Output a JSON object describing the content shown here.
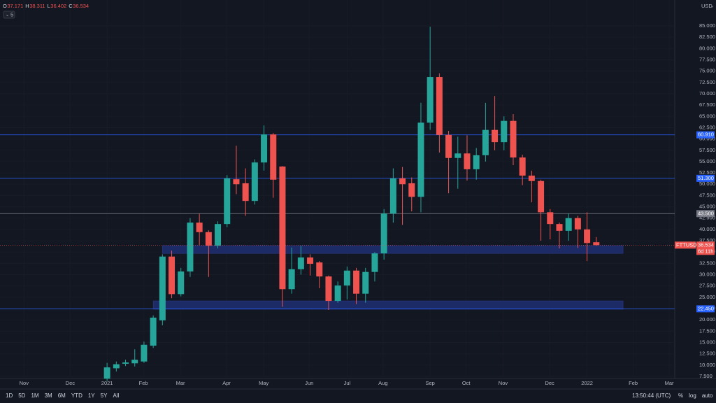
{
  "chart_data": {
    "type": "candlestick",
    "categories": [
      null,
      null,
      null,
      null,
      null,
      null,
      null,
      null,
      null,
      null,
      null,
      null,
      null,
      null,
      null,
      null,
      null,
      null,
      null,
      null,
      null,
      null,
      null,
      null,
      null,
      null,
      null,
      null,
      null,
      null,
      null,
      null,
      null,
      null,
      null,
      null,
      null,
      null,
      null,
      null,
      null,
      null,
      null,
      null,
      null,
      null,
      null,
      null,
      null,
      null,
      null,
      null,
      null,
      null
    ],
    "open": [
      7.0,
      9.3,
      10.3,
      10.4,
      10.8,
      14.3,
      19.9,
      34.0,
      25.7,
      30.7,
      41.5,
      39.4,
      36.4,
      41.2,
      51.1,
      50.2,
      46.3,
      54.8,
      61.0,
      53.9,
      26.8,
      31.2,
      33.8,
      32.7,
      29.6,
      24.2,
      27.6,
      30.9,
      25.8,
      30.6,
      34.7,
      43.5,
      51.3,
      50.2,
      47.2,
      63.6,
      73.7,
      60.9,
      55.8,
      56.8,
      53.3,
      56.4,
      62.0,
      59.3,
      64.0,
      55.9,
      51.9,
      50.7,
      43.8,
      41.2,
      39.7,
      42.5,
      40.0,
      37.171
    ],
    "high": [
      10.5,
      10.8,
      11.2,
      13.5,
      15.2,
      21.0,
      34.5,
      35.3,
      31.5,
      42.5,
      43.5,
      39.8,
      41.8,
      52.0,
      58.5,
      53.5,
      55.5,
      63.0,
      61.3,
      54.0,
      36.0,
      36.3,
      34.5,
      33.0,
      29.8,
      28.5,
      31.8,
      31.5,
      31.5,
      35.0,
      44.5,
      53.5,
      53.8,
      51.5,
      68.0,
      84.8,
      74.5,
      61.8,
      60.5,
      60.8,
      58.0,
      68.0,
      69.5,
      65.0,
      65.5,
      56.5,
      53.0,
      51.0,
      44.5,
      41.5,
      43.5,
      43.0,
      43.8,
      38.311
    ],
    "low": [
      6.5,
      8.6,
      9.8,
      9.7,
      10.5,
      13.8,
      18.8,
      24.8,
      25.2,
      29.5,
      36.5,
      29.5,
      35.8,
      40.5,
      47.8,
      43.0,
      45.5,
      53.0,
      47.0,
      22.9,
      25.8,
      30.0,
      29.8,
      27.0,
      22.2,
      23.8,
      24.5,
      23.5,
      23.8,
      28.5,
      33.3,
      41.5,
      41.0,
      44.0,
      43.8,
      62.0,
      57.0,
      48.0,
      49.0,
      50.8,
      51.0,
      55.0,
      57.5,
      57.5,
      54.2,
      49.8,
      46.0,
      37.5,
      37.8,
      35.8,
      37.5,
      35.9,
      33.0,
      36.402
    ],
    "close": [
      9.5,
      10.2,
      10.6,
      11.2,
      14.5,
      20.5,
      34.0,
      25.7,
      30.7,
      41.5,
      39.4,
      36.4,
      41.2,
      51.3,
      50.0,
      46.3,
      54.8,
      61.0,
      51.0,
      26.8,
      31.2,
      33.8,
      32.4,
      29.6,
      24.2,
      27.6,
      30.9,
      25.8,
      30.6,
      34.7,
      43.5,
      51.3,
      50.0,
      47.2,
      63.6,
      73.7,
      60.9,
      55.8,
      56.8,
      53.3,
      56.4,
      62.0,
      59.3,
      64.0,
      55.9,
      51.9,
      50.7,
      43.8,
      41.2,
      39.7,
      42.5,
      40.0,
      37.0,
      36.534
    ],
    "up_color": "#26a69a",
    "down_color": "#ef5350",
    "ohlc_letters": [
      "O",
      "H",
      "L",
      "C"
    ],
    "symbol": "FTTUSD",
    "countdown": "6d 11h",
    "currency": "USD",
    "indicator_count": "5",
    "grid": true,
    "ylim": [
      7.04,
      90.72
    ],
    "xlim": [
      -11.6,
      61.5
    ],
    "yticks": [
      {
        "value": 7.5,
        "label": "7.500"
      },
      {
        "value": 10,
        "label": "10.000"
      },
      {
        "value": 12.5,
        "label": "12.500"
      },
      {
        "value": 15,
        "label": "15.000"
      },
      {
        "value": 17.5,
        "label": "17.500"
      },
      {
        "value": 20,
        "label": "20.000"
      },
      {
        "value": 22.5,
        "label": "22.500"
      },
      {
        "value": 25,
        "label": "25.000"
      },
      {
        "value": 27.5,
        "label": "27.500"
      },
      {
        "value": 30,
        "label": "30.000"
      },
      {
        "value": 32.5,
        "label": "32.500"
      },
      {
        "value": 35,
        "label": "35.000"
      },
      {
        "value": 37.5,
        "label": "37.500"
      },
      {
        "value": 40,
        "label": "40.000"
      },
      {
        "value": 42.5,
        "label": "42.500"
      },
      {
        "value": 45,
        "label": "45.000"
      },
      {
        "value": 47.5,
        "label": "47.500"
      },
      {
        "value": 50,
        "label": "50.000"
      },
      {
        "value": 52.5,
        "label": "52.500"
      },
      {
        "value": 55,
        "label": "55.000"
      },
      {
        "value": 57.5,
        "label": "57.500"
      },
      {
        "value": 60,
        "label": "60.000"
      },
      {
        "value": 62.5,
        "label": "62.500"
      },
      {
        "value": 65,
        "label": "65.000"
      },
      {
        "value": 67.5,
        "label": "67.500"
      },
      {
        "value": 70,
        "label": "70.000"
      },
      {
        "value": 72.5,
        "label": "72.500"
      },
      {
        "value": 75,
        "label": "75.000"
      },
      {
        "value": 77.5,
        "label": "77.500"
      },
      {
        "value": 80,
        "label": "80.000"
      },
      {
        "value": 82.5,
        "label": "82.500"
      },
      {
        "value": 85,
        "label": "85.000"
      }
    ],
    "xticks": [
      {
        "value": -9.0,
        "label": "Nov"
      },
      {
        "value": -4.0,
        "label": "Dec"
      },
      {
        "value": 0,
        "label": "2021"
      },
      {
        "value": 3.94,
        "label": "Feb"
      },
      {
        "value": 7.95,
        "label": "Mar"
      },
      {
        "value": 12.95,
        "label": "Apr"
      },
      {
        "value": 16.97,
        "label": "May"
      },
      {
        "value": 21.9,
        "label": "Jun"
      },
      {
        "value": 26,
        "label": "Jul"
      },
      {
        "value": 29.9,
        "label": "Aug"
      },
      {
        "value": 35,
        "label": "Sep"
      },
      {
        "value": 38.9,
        "label": "Oct"
      },
      {
        "value": 42.9,
        "label": "Nov"
      },
      {
        "value": 47.95,
        "label": "Dec"
      },
      {
        "value": 52,
        "label": "2022"
      },
      {
        "value": 57,
        "label": "Feb"
      },
      {
        "value": 60.9,
        "label": "Mar"
      }
    ],
    "levels": [
      {
        "value": 60.91,
        "label": "60.910",
        "color": "#2962ff"
      },
      {
        "value": 51.3,
        "label": "51.300",
        "color": "#2962ff"
      },
      {
        "value": 43.5,
        "label": "43.500",
        "color": "#787b86"
      },
      {
        "value": 22.45,
        "label": "22.450",
        "color": "#2962ff"
      }
    ],
    "zones": [
      {
        "from": 34.7,
        "to": 36.4,
        "start": 6.0,
        "end": 55.9,
        "color": "#1c2b66"
      },
      {
        "from": 22.35,
        "to": 24.2,
        "start": 5.0,
        "end": 55.9,
        "color": "#1c2b66"
      }
    ]
  },
  "toolbar": {
    "ranges": [
      "1D",
      "5D",
      "1M",
      "3M",
      "6M",
      "YTD",
      "1Y",
      "5Y",
      "All"
    ],
    "clock": "13:50:44 (UTC)",
    "options": [
      "%",
      "log",
      "auto"
    ]
  }
}
